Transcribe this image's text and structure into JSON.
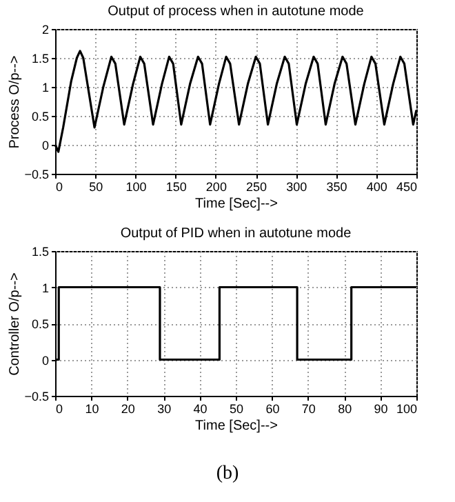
{
  "chart_data": [
    {
      "type": "line",
      "title": "Output of process when in autotune mode",
      "xlabel": "Time [Sec]-->",
      "ylabel": "Process O/p-->",
      "x": [
        0,
        4,
        10,
        20,
        27,
        31,
        35,
        49,
        60,
        70,
        75,
        86,
        97,
        106,
        111,
        122,
        133,
        142,
        147,
        157,
        168,
        178,
        183,
        193,
        204,
        213,
        218,
        229,
        240,
        250,
        255,
        265,
        276,
        286,
        291,
        301,
        312,
        322,
        327,
        337,
        348,
        358,
        363,
        374,
        385,
        394,
        399,
        410,
        421,
        430,
        435,
        446,
        450
      ],
      "series": [
        {
          "color": "#000000",
          "values": [
            0,
            -0.12,
            0.3,
            1.1,
            1.5,
            1.62,
            1.5,
            0.3,
            1.0,
            1.52,
            1.4,
            0.35,
            1.05,
            1.52,
            1.4,
            0.35,
            1.05,
            1.52,
            1.4,
            0.35,
            1.05,
            1.52,
            1.4,
            0.35,
            1.05,
            1.52,
            1.4,
            0.35,
            1.05,
            1.52,
            1.4,
            0.35,
            1.05,
            1.52,
            1.4,
            0.35,
            1.05,
            1.52,
            1.4,
            0.35,
            1.05,
            1.52,
            1.4,
            0.35,
            1.05,
            1.52,
            1.4,
            0.35,
            1.05,
            1.52,
            1.4,
            0.35,
            0.6
          ]
        }
      ],
      "xlim": [
        0,
        450
      ],
      "xticks": [
        0,
        50,
        100,
        150,
        200,
        250,
        300,
        350,
        400,
        450
      ],
      "ylim": [
        -0.5,
        2
      ],
      "yticks": [
        -0.5,
        0,
        0.5,
        1,
        1.5,
        2
      ],
      "grid": true,
      "line_style": "solid"
    },
    {
      "type": "step",
      "title": "Output of PID when in autotune mode",
      "xlabel": "Time [Sec]-->",
      "ylabel": "Controller O/p-->",
      "x": [
        0,
        1,
        29,
        45.5,
        67,
        82,
        100
      ],
      "series": [
        {
          "color": "#000000",
          "values": [
            0,
            1,
            0,
            1,
            0,
            1,
            1
          ]
        }
      ],
      "xlim": [
        0,
        100
      ],
      "xticks": [
        0,
        10,
        20,
        30,
        40,
        50,
        60,
        70,
        80,
        90,
        100
      ],
      "ylim": [
        -0.5,
        1.5
      ],
      "yticks": [
        -0.5,
        0,
        0.5,
        1,
        1.5
      ],
      "grid": true,
      "line_style": "solid",
      "annotations": [
        "(b)"
      ]
    }
  ]
}
